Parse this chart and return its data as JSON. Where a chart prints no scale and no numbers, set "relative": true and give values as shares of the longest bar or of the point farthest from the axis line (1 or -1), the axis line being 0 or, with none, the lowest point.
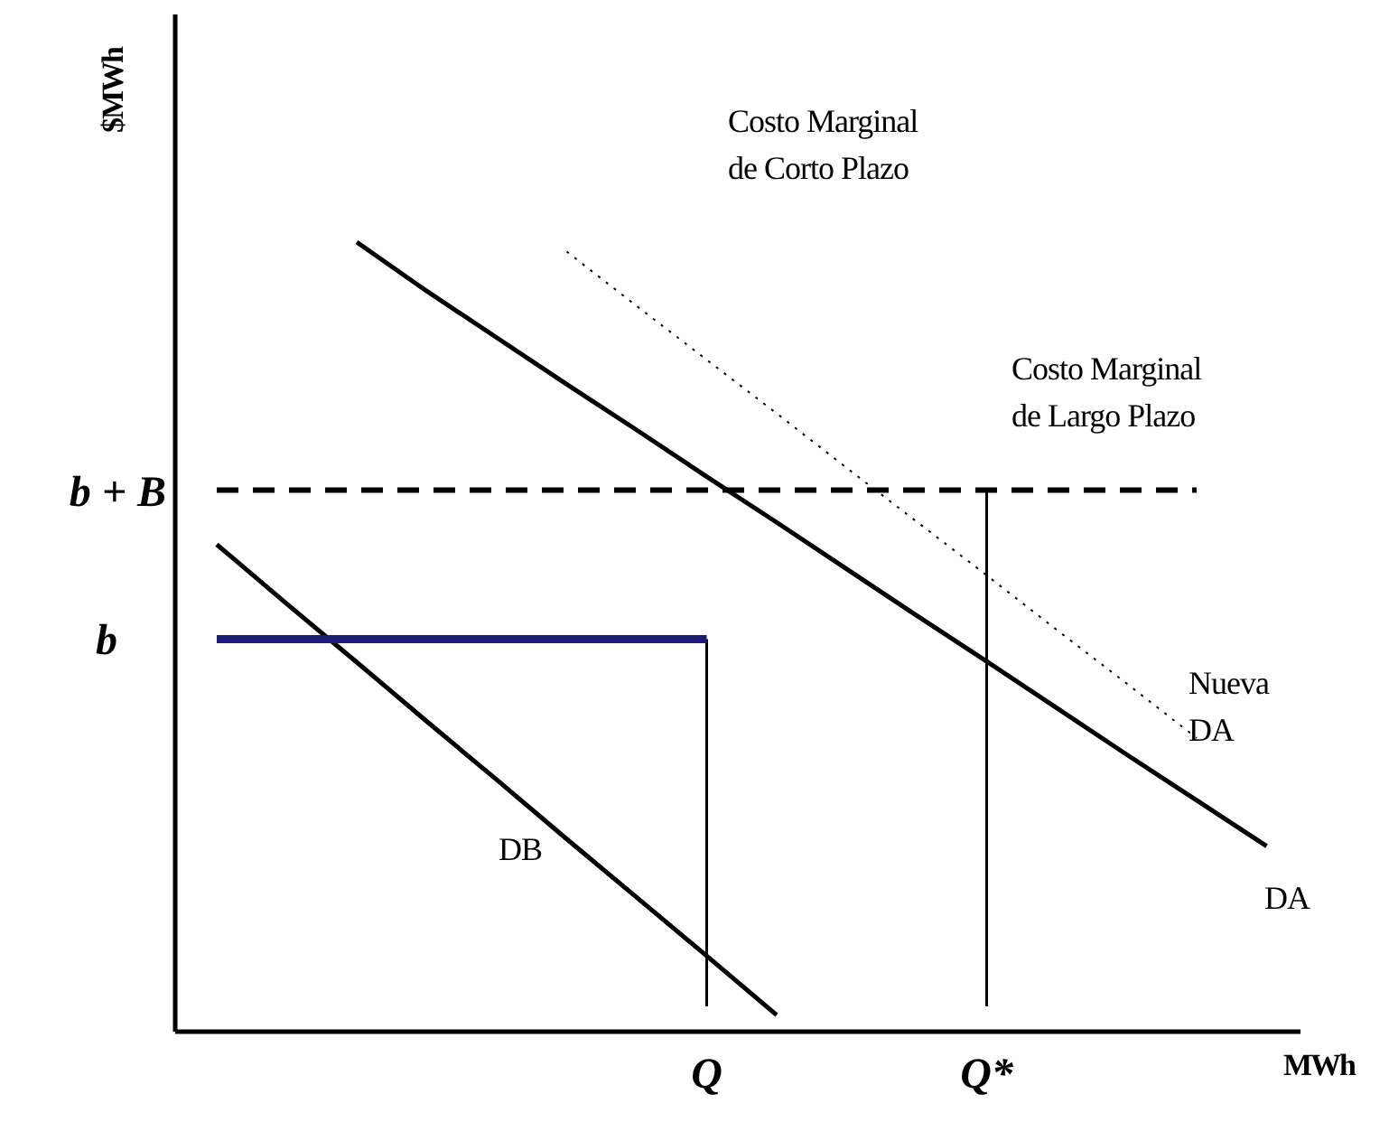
{
  "chart_data": {
    "type": "line",
    "relative": true,
    "xlabel": "MWh",
    "ylabel": "$MWh",
    "marker": "none",
    "categories": [
      null,
      null,
      null,
      null,
      null,
      null,
      null,
      "Q",
      null,
      null,
      null,
      "Q*",
      null,
      null,
      null,
      null
    ],
    "series": [
      {
        "color": "#000000",
        "line_style": "solid",
        "values": [
          0.617,
          0.542,
          0.468,
          0.393,
          0.319,
          0.244,
          0.17,
          0.096,
          0.021,
          null,
          null,
          null,
          null,
          null,
          null,
          null
        ]
      },
      {
        "color": "#000000",
        "line_style": "solid",
        "values": [
          null,
          null,
          1,
          0.938,
          0.879,
          0.82,
          0.762,
          0.703,
          0.645,
          0.586,
          0.527,
          0.469,
          0.41,
          0.351,
          0.293,
          0.235
        ]
      },
      {
        "color": "#000000",
        "line_style": "dotted",
        "values": [
          null,
          null,
          null,
          null,
          null,
          0.988,
          0.919,
          0.851,
          0.783,
          0.714,
          0.646,
          0.578,
          0.509,
          0.441,
          0.372,
          null
        ]
      },
      {
        "color": "#000000",
        "line_style": "dashed",
        "values": [
          0.686,
          0.686,
          0.686,
          0.686,
          0.686,
          0.686,
          0.686,
          0.686,
          0.686,
          0.686,
          0.686,
          0.686,
          0.686,
          0.686,
          0.686,
          null
        ]
      },
      {
        "color": "#1c1c78",
        "line_style": "solid",
        "values": [
          0.497,
          0.497,
          0.497,
          0.497,
          0.497,
          0.497,
          0.497,
          0.497,
          null,
          null,
          null,
          null,
          null,
          null,
          null,
          null
        ]
      }
    ],
    "ref_lines": [
      {
        "axis": "x",
        "value": "Q",
        "color": "#000000"
      },
      {
        "axis": "x",
        "value": "Q*",
        "color": "#000000"
      }
    ],
    "annotations": [
      "Costo Marginal\nde Corto Plazo",
      "Costo Marginal\nde Largo Plazo",
      "Nueva\nDA",
      "DA",
      "DB",
      "b + B",
      "b"
    ]
  }
}
